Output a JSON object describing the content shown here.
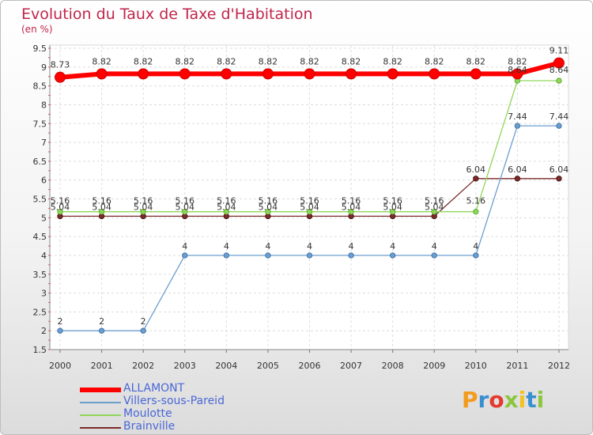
{
  "chart_data": {
    "type": "line",
    "title": "Evolution du Taux de Taxe d'Habitation",
    "subtitle": "(en %)",
    "categories": [
      "2000",
      "2001",
      "2002",
      "2003",
      "2004",
      "2005",
      "2006",
      "2007",
      "2008",
      "2009",
      "2010",
      "2011",
      "2012"
    ],
    "y_ticks": [
      "1.5",
      "2",
      "2.5",
      "3",
      "3.5",
      "4",
      "4.5",
      "5",
      "5.5",
      "6",
      "6.5",
      "7",
      "7.5",
      "8",
      "8.5",
      "9",
      "9.5"
    ],
    "ylim": [
      1.5,
      9.5
    ],
    "grid": true,
    "legend_position": "bottom-left",
    "series": [
      {
        "name": "ALLAMONT",
        "color": "#ff0000",
        "values": [
          8.73,
          8.82,
          8.82,
          8.82,
          8.82,
          8.82,
          8.82,
          8.82,
          8.82,
          8.82,
          8.82,
          8.82,
          9.11
        ],
        "labels": [
          "8.73",
          "8.82",
          "8.82",
          "8.82",
          "8.82",
          "8.82",
          "8.82",
          "8.82",
          "8.82",
          "8.82",
          "8.82",
          "8.82",
          "9.11"
        ]
      },
      {
        "name": "Villers-sous-Pareid",
        "color": "#6c9ecf",
        "values": [
          2,
          2,
          2,
          4,
          4,
          4,
          4,
          4,
          4,
          4,
          4,
          7.44,
          7.44
        ],
        "labels": [
          "2",
          "2",
          "2",
          "4",
          "4",
          "4",
          "4",
          "4",
          "4",
          "4",
          "4",
          "7.44",
          "7.44"
        ]
      },
      {
        "name": "Moulotte",
        "color": "#8fd65a",
        "values": [
          5.16,
          5.16,
          5.16,
          5.16,
          5.16,
          5.16,
          5.16,
          5.16,
          5.16,
          5.16,
          5.16,
          8.64,
          8.64
        ],
        "labels": [
          "5.16",
          "5.16",
          "5.16",
          "5.16",
          "5.16",
          "5.16",
          "5.16",
          "5.16",
          "5.16",
          "5.16",
          "5.16",
          "8.64",
          "8.64"
        ]
      },
      {
        "name": "Brainville",
        "color": "#7b2a2a",
        "values": [
          5.04,
          5.04,
          5.04,
          5.04,
          5.04,
          5.04,
          5.04,
          5.04,
          5.04,
          5.04,
          6.04,
          6.04,
          6.04
        ],
        "labels": [
          "5.04",
          "5.04",
          "5.04",
          "5.04",
          "5.04",
          "5.04",
          "5.04",
          "5.04",
          "5.04",
          "5.04",
          "6.04",
          "6.04",
          "6.04"
        ]
      }
    ]
  },
  "logo": {
    "text": "Proxiti"
  }
}
